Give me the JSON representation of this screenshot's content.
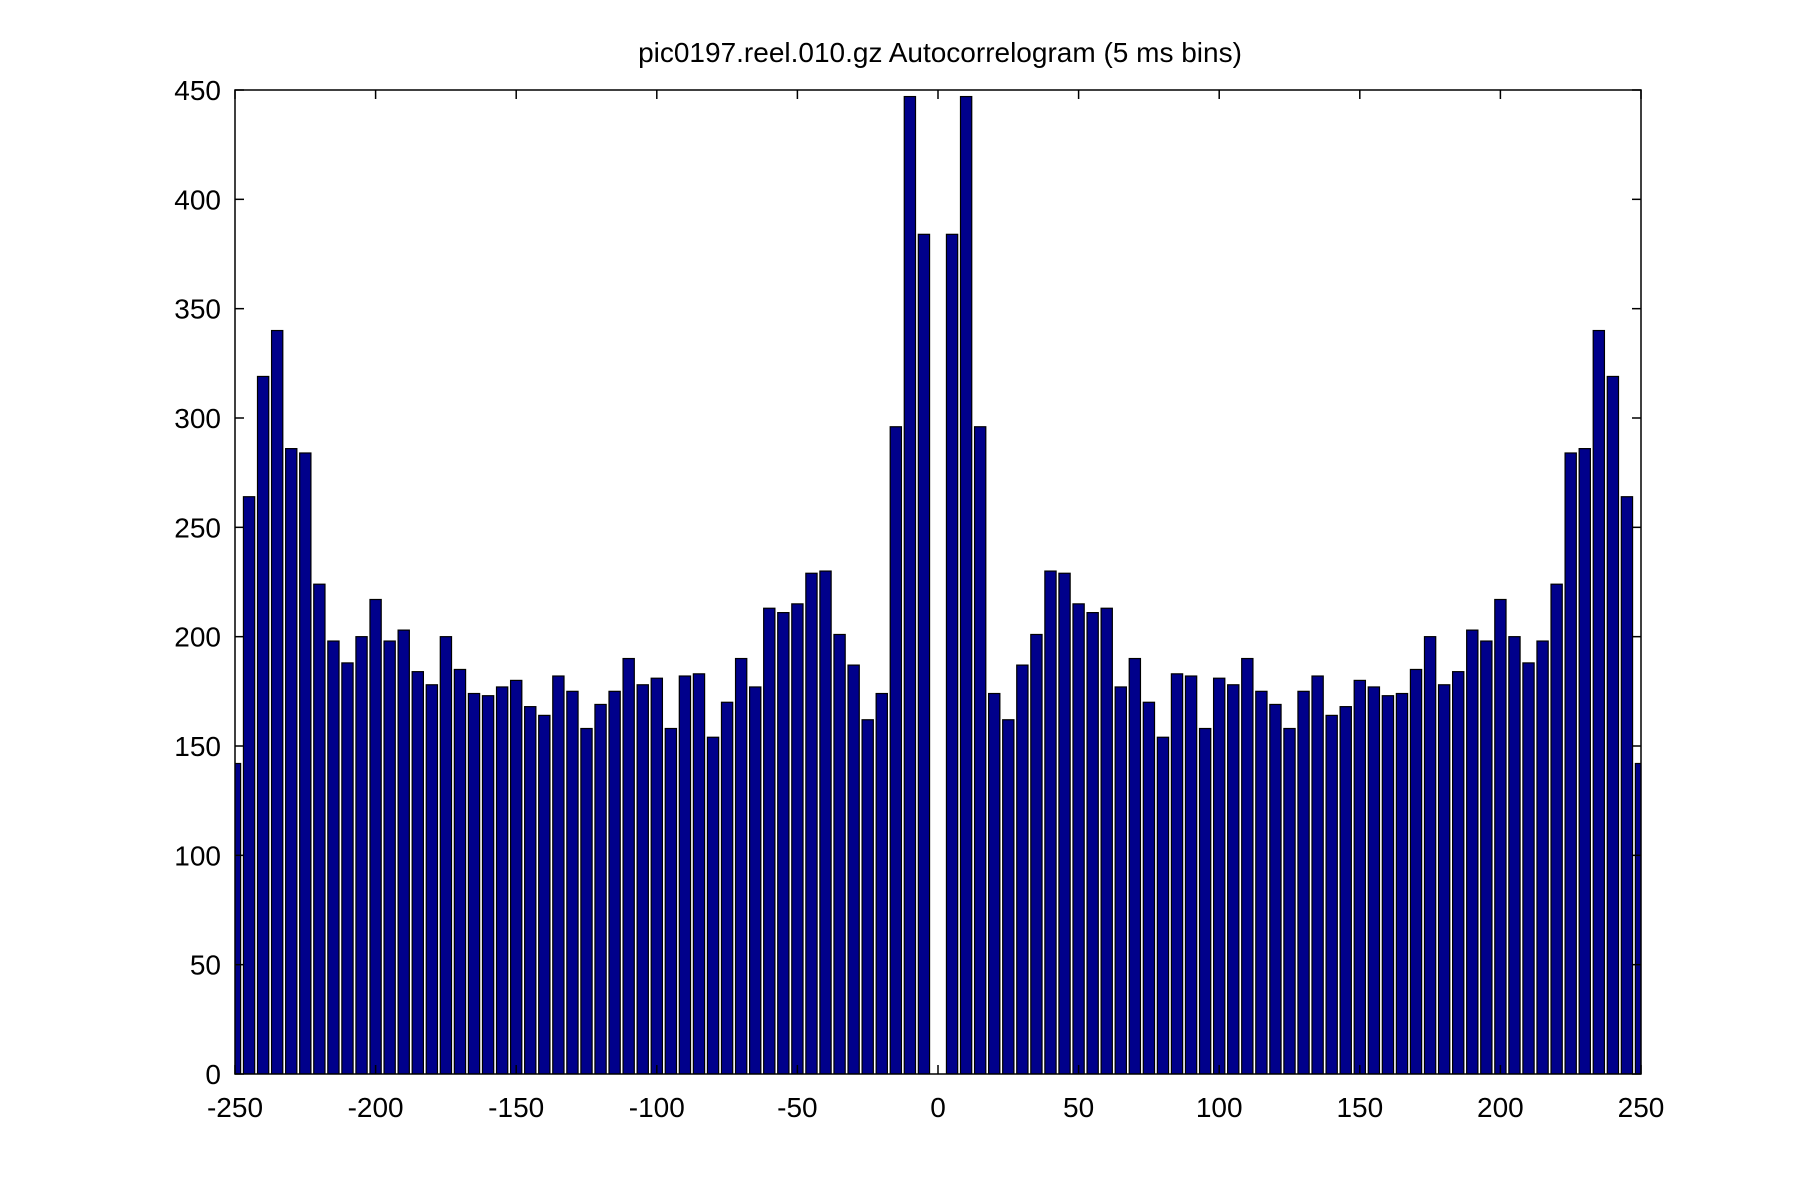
{
  "chart_data": {
    "type": "bar",
    "title": "pic0197.reel.010.gz  Autocorrelogram (5 ms bins)",
    "xlabel": "",
    "ylabel": "",
    "xlim": [
      -250,
      250
    ],
    "ylim": [
      0,
      450
    ],
    "xticks": [
      -250,
      -200,
      -150,
      -100,
      -50,
      0,
      50,
      100,
      150,
      200,
      250
    ],
    "yticks": [
      0,
      50,
      100,
      150,
      200,
      250,
      300,
      350,
      400,
      450
    ],
    "grid": false,
    "legend": "none",
    "bar_color": "#00008b",
    "bar_edge_color": "#000000",
    "bin_width": 5,
    "x": [
      -250,
      -245,
      -240,
      -235,
      -230,
      -225,
      -220,
      -215,
      -210,
      -205,
      -200,
      -195,
      -190,
      -185,
      -180,
      -175,
      -170,
      -165,
      -160,
      -155,
      -150,
      -145,
      -140,
      -135,
      -130,
      -125,
      -120,
      -115,
      -110,
      -105,
      -100,
      -95,
      -90,
      -85,
      -80,
      -75,
      -70,
      -65,
      -60,
      -55,
      -50,
      -45,
      -40,
      -35,
      -30,
      -25,
      -20,
      -15,
      -10,
      -5,
      0,
      5,
      10,
      15,
      20,
      25,
      30,
      35,
      40,
      45,
      50,
      55,
      60,
      65,
      70,
      75,
      80,
      85,
      90,
      95,
      100,
      105,
      110,
      115,
      120,
      125,
      130,
      135,
      140,
      145,
      150,
      155,
      160,
      165,
      170,
      175,
      180,
      185,
      190,
      195,
      200,
      205,
      210,
      215,
      220,
      225,
      230,
      235,
      240,
      245,
      250
    ],
    "values": [
      142,
      264,
      319,
      340,
      286,
      284,
      224,
      198,
      188,
      200,
      217,
      198,
      203,
      184,
      178,
      200,
      185,
      174,
      173,
      177,
      180,
      168,
      164,
      182,
      175,
      158,
      169,
      175,
      190,
      178,
      181,
      158,
      182,
      183,
      154,
      170,
      190,
      177,
      213,
      211,
      215,
      229,
      230,
      201,
      187,
      162,
      174,
      296,
      447,
      384,
      0,
      384,
      447,
      296,
      174,
      162,
      187,
      201,
      230,
      229,
      215,
      211,
      213,
      177,
      190,
      170,
      154,
      183,
      182,
      158,
      181,
      178,
      190,
      175,
      169,
      158,
      175,
      182,
      164,
      168,
      180,
      177,
      173,
      174,
      185,
      200,
      178,
      184,
      203,
      198,
      217,
      200,
      188,
      198,
      224,
      284,
      286,
      340,
      319,
      264,
      142
    ]
  }
}
